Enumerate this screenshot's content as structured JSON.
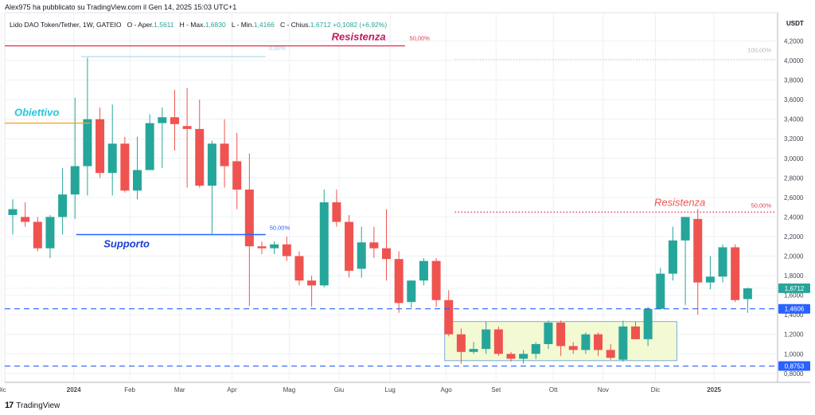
{
  "header": {
    "author_line": "Alex975 ha pubblicato su TradingView.com il Gen 14, 2025 15:03 UTC+1",
    "symbol_line": "Lido DAO Token/Tether, 1W, GATEIO",
    "ohlc": {
      "open_label": "O - Aper.",
      "open": "1,5611",
      "high_label": "H - Max.",
      "high": "1,6830",
      "low_label": "L - Min.",
      "low": "1,4166",
      "close_label": "C - Chius.",
      "close": "1,6712",
      "change": "+0,1082 (+6,92%)"
    }
  },
  "footer": {
    "brand": "TradingView"
  },
  "colors": {
    "up": "#26a69a",
    "down": "#ef5350",
    "resistance": "#e53950",
    "support": "#2962ff",
    "objective": "#f5a623",
    "dashed": "#2962ff",
    "box_fill": "#f3f9d2",
    "box_border": "#5b9bd5"
  },
  "chart_data": {
    "type": "candlestick",
    "currency": "USDT",
    "ylim": [
      0.7,
      4.3
    ],
    "y_ticks": [
      "4,2000",
      "4,0000",
      "3,8000",
      "3,6000",
      "3,4000",
      "3,2000",
      "3,0000",
      "2,8000",
      "2,6000",
      "2,4000",
      "2,2000",
      "2,0000",
      "1,8000",
      "1,6000",
      "1,4000",
      "1,2000",
      "1,0000",
      "0,8000"
    ],
    "x_labels": [
      {
        "label": "Dic",
        "index": -0.9
      },
      {
        "label": "2024",
        "index": 4.9
      },
      {
        "label": "Feb",
        "index": 9.4
      },
      {
        "label": "Mar",
        "index": 13.4
      },
      {
        "label": "Apr",
        "index": 17.6
      },
      {
        "label": "Mag",
        "index": 22.2
      },
      {
        "label": "Giu",
        "index": 26.2
      },
      {
        "label": "Lug",
        "index": 30.3
      },
      {
        "label": "Ago",
        "index": 34.8
      },
      {
        "label": "Set",
        "index": 38.8
      },
      {
        "label": "Ott",
        "index": 43.4
      },
      {
        "label": "Nov",
        "index": 47.4
      },
      {
        "label": "Dic",
        "index": 51.6
      },
      {
        "label": "2025",
        "index": 56.3
      }
    ],
    "candles": [
      {
        "o": 2.42,
        "h": 2.58,
        "l": 2.22,
        "c": 2.48
      },
      {
        "o": 2.4,
        "h": 2.55,
        "l": 2.3,
        "c": 2.35
      },
      {
        "o": 2.35,
        "h": 2.4,
        "l": 2.05,
        "c": 2.08
      },
      {
        "o": 2.08,
        "h": 2.42,
        "l": 1.98,
        "c": 2.4
      },
      {
        "o": 2.4,
        "h": 2.9,
        "l": 2.22,
        "c": 2.63
      },
      {
        "o": 2.63,
        "h": 3.62,
        "l": 2.38,
        "c": 2.92
      },
      {
        "o": 2.92,
        "h": 4.03,
        "l": 2.62,
        "c": 3.4
      },
      {
        "o": 3.4,
        "h": 3.52,
        "l": 2.8,
        "c": 2.85
      },
      {
        "o": 2.85,
        "h": 3.55,
        "l": 2.62,
        "c": 3.15
      },
      {
        "o": 3.15,
        "h": 3.22,
        "l": 2.65,
        "c": 2.67
      },
      {
        "o": 2.67,
        "h": 3.22,
        "l": 2.58,
        "c": 2.88
      },
      {
        "o": 2.88,
        "h": 3.45,
        "l": 2.88,
        "c": 3.36
      },
      {
        "o": 3.36,
        "h": 3.52,
        "l": 2.9,
        "c": 3.42
      },
      {
        "o": 3.42,
        "h": 3.7,
        "l": 3.08,
        "c": 3.35
      },
      {
        "o": 3.33,
        "h": 3.72,
        "l": 2.7,
        "c": 3.3
      },
      {
        "o": 3.3,
        "h": 3.6,
        "l": 2.7,
        "c": 2.72
      },
      {
        "o": 2.72,
        "h": 3.18,
        "l": 2.23,
        "c": 3.15
      },
      {
        "o": 3.15,
        "h": 3.4,
        "l": 2.7,
        "c": 2.92
      },
      {
        "o": 2.97,
        "h": 3.26,
        "l": 2.48,
        "c": 2.68
      },
      {
        "o": 2.68,
        "h": 3.05,
        "l": 1.49,
        "c": 2.1
      },
      {
        "o": 2.1,
        "h": 2.15,
        "l": 2.02,
        "c": 2.08
      },
      {
        "o": 2.08,
        "h": 2.15,
        "l": 2.02,
        "c": 2.12
      },
      {
        "o": 2.12,
        "h": 2.2,
        "l": 1.95,
        "c": 2.0
      },
      {
        "o": 2.0,
        "h": 2.05,
        "l": 1.7,
        "c": 1.75
      },
      {
        "o": 1.75,
        "h": 1.8,
        "l": 1.48,
        "c": 1.7
      },
      {
        "o": 1.7,
        "h": 2.68,
        "l": 1.68,
        "c": 2.55
      },
      {
        "o": 2.55,
        "h": 2.68,
        "l": 2.3,
        "c": 2.35
      },
      {
        "o": 2.35,
        "h": 2.42,
        "l": 1.78,
        "c": 1.85
      },
      {
        "o": 1.87,
        "h": 2.3,
        "l": 1.78,
        "c": 2.14
      },
      {
        "o": 2.14,
        "h": 2.3,
        "l": 1.98,
        "c": 2.08
      },
      {
        "o": 2.08,
        "h": 2.48,
        "l": 1.75,
        "c": 1.97
      },
      {
        "o": 1.97,
        "h": 2.05,
        "l": 1.42,
        "c": 1.52
      },
      {
        "o": 1.53,
        "h": 1.75,
        "l": 1.47,
        "c": 1.75
      },
      {
        "o": 1.75,
        "h": 1.98,
        "l": 1.7,
        "c": 1.95
      },
      {
        "o": 1.95,
        "h": 1.98,
        "l": 1.48,
        "c": 1.55
      },
      {
        "o": 1.55,
        "h": 1.65,
        "l": 1.18,
        "c": 1.2
      },
      {
        "o": 1.2,
        "h": 1.26,
        "l": 0.9,
        "c": 1.02
      },
      {
        "o": 1.02,
        "h": 1.12,
        "l": 1.0,
        "c": 1.05
      },
      {
        "o": 1.05,
        "h": 1.33,
        "l": 1.0,
        "c": 1.25
      },
      {
        "o": 1.25,
        "h": 1.28,
        "l": 0.98,
        "c": 1.0
      },
      {
        "o": 1.0,
        "h": 1.02,
        "l": 0.92,
        "c": 0.95
      },
      {
        "o": 0.95,
        "h": 1.04,
        "l": 0.9,
        "c": 1.0
      },
      {
        "o": 1.0,
        "h": 1.12,
        "l": 0.95,
        "c": 1.1
      },
      {
        "o": 1.1,
        "h": 1.34,
        "l": 1.05,
        "c": 1.32
      },
      {
        "o": 1.32,
        "h": 1.34,
        "l": 0.98,
        "c": 1.08
      },
      {
        "o": 1.08,
        "h": 1.12,
        "l": 1.0,
        "c": 1.04
      },
      {
        "o": 1.04,
        "h": 1.22,
        "l": 1.0,
        "c": 1.2
      },
      {
        "o": 1.2,
        "h": 1.22,
        "l": 0.98,
        "c": 1.04
      },
      {
        "o": 1.04,
        "h": 1.1,
        "l": 0.94,
        "c": 0.96
      },
      {
        "o": 0.94,
        "h": 1.34,
        "l": 0.92,
        "c": 1.28
      },
      {
        "o": 1.28,
        "h": 1.33,
        "l": 1.15,
        "c": 1.15
      },
      {
        "o": 1.15,
        "h": 1.48,
        "l": 1.08,
        "c": 1.46
      },
      {
        "o": 1.46,
        "h": 1.88,
        "l": 1.45,
        "c": 1.82
      },
      {
        "o": 1.82,
        "h": 2.3,
        "l": 1.75,
        "c": 2.16
      },
      {
        "o": 2.16,
        "h": 2.4,
        "l": 1.5,
        "c": 2.4
      },
      {
        "o": 2.38,
        "h": 2.48,
        "l": 1.4,
        "c": 1.73
      },
      {
        "o": 1.73,
        "h": 2.0,
        "l": 1.66,
        "c": 1.79
      },
      {
        "o": 1.79,
        "h": 2.12,
        "l": 1.73,
        "c": 2.09
      },
      {
        "o": 2.09,
        "h": 2.12,
        "l": 1.53,
        "c": 1.55
      },
      {
        "o": 1.56,
        "h": 1.68,
        "l": 1.42,
        "c": 1.67
      }
    ],
    "annotations": {
      "resistenza_top": {
        "label": "Resistenza",
        "pct": "50,00%",
        "value": 4.15
      },
      "resistenza_right": {
        "label": "Resistenza",
        "pct": "50,00%",
        "value": 2.45
      },
      "obiettivo": {
        "label": "Obiettivo",
        "value": 3.36
      },
      "supporto": {
        "label": "Supporto",
        "pct": "50,00%",
        "value": 2.22
      },
      "fib_zero": {
        "label": "0,00%",
        "value": 4.04
      },
      "fib_hundred": {
        "label": "100,00%",
        "value": 4.02
      }
    },
    "levels": [
      {
        "label": "1,4606",
        "value": 1.4606,
        "bg": "#2962ff"
      },
      {
        "label": "0,8753",
        "value": 0.8753,
        "bg": "#2962ff"
      }
    ],
    "price_tag": {
      "label": "1,6712",
      "value": 1.6712,
      "bg": "#26a69a"
    },
    "range_box": {
      "low": 0.93,
      "high": 1.33
    }
  }
}
